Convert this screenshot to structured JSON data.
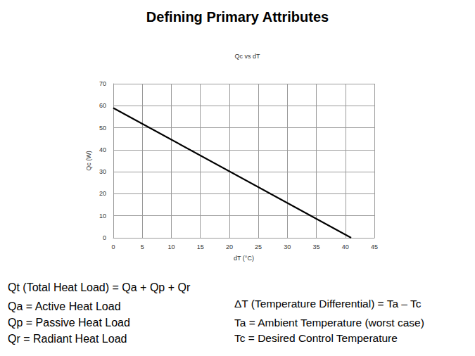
{
  "slide": {
    "title": "Defining Primary Attributes",
    "left_notes": [
      "Qt (Total Heat Load) = Qa + Qp + Qr",
      "Qa = Active Heat Load",
      "Qp = Passive Heat Load",
      "Qr = Radiant Heat Load"
    ],
    "right_notes": [
      "ΔT (Temperature Differential) = Ta – Tc",
      "Ta = Ambient Temperature (worst case)",
      "Tc = Desired Control Temperature"
    ]
  },
  "chart_data": {
    "type": "line",
    "title": "Qc vs dT",
    "x_label": "dT (°C)",
    "y_label": "Qc (W)",
    "x": [
      0,
      41
    ],
    "values": [
      59,
      0
    ],
    "color": "#000000",
    "xlim": [
      0,
      45
    ],
    "xticks": [
      0,
      5,
      10,
      15,
      20,
      25,
      30,
      35,
      40,
      45
    ],
    "ylim": [
      0,
      70
    ],
    "yticks": [
      0,
      10,
      20,
      30,
      40,
      50,
      60,
      70
    ],
    "grid": true
  }
}
